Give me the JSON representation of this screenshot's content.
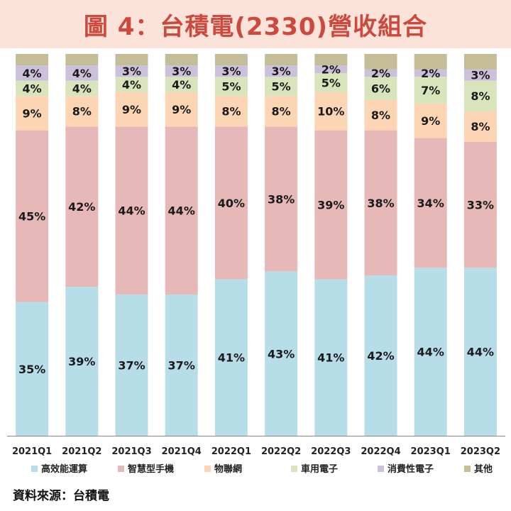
{
  "title": "圖 4：台積電(2330)營收組合",
  "source": "資料來源：台積電",
  "chart_data": {
    "type": "bar",
    "stacked": true,
    "percent": true,
    "categories": [
      "2021Q1",
      "2021Q2",
      "2021Q3",
      "2021Q4",
      "2022Q1",
      "2022Q2",
      "2022Q3",
      "2022Q4",
      "2023Q1",
      "2023Q2"
    ],
    "series": [
      {
        "name": "高效能運算",
        "color": "#b7dde8",
        "values": [
          35,
          39,
          37,
          37,
          41,
          43,
          41,
          42,
          44,
          44
        ]
      },
      {
        "name": "智慧型手機",
        "color": "#e6b8b7",
        "values": [
          45,
          42,
          44,
          44,
          40,
          38,
          39,
          38,
          34,
          33
        ]
      },
      {
        "name": "物聯網",
        "color": "#fcd5b4",
        "values": [
          9,
          8,
          9,
          9,
          8,
          8,
          10,
          8,
          9,
          8
        ]
      },
      {
        "name": "車用電子",
        "color": "#d8e4bc",
        "values": [
          4,
          4,
          4,
          4,
          5,
          5,
          5,
          6,
          7,
          8
        ]
      },
      {
        "name": "消費性電子",
        "color": "#ccc0da",
        "values": [
          4,
          4,
          3,
          3,
          3,
          3,
          2,
          2,
          2,
          3
        ]
      },
      {
        "name": "其他",
        "color": "#c4bd97",
        "values": [
          3,
          3,
          3,
          3,
          3,
          3,
          3,
          4,
          4,
          4
        ]
      }
    ],
    "data_labels": [
      [
        "35%",
        "39%",
        "37%",
        "37%",
        "41%",
        "43%",
        "41%",
        "42%",
        "44%",
        "44%"
      ],
      [
        "45%",
        "42%",
        "44%",
        "44%",
        "40%",
        "38%",
        "39%",
        "38%",
        "34%",
        "33%"
      ],
      [
        "9%",
        "8%",
        "9%",
        "9%",
        "8%",
        "8%",
        "10%",
        "8%",
        "9%",
        "8%"
      ],
      [
        "4%",
        "4%",
        "4%",
        "4%",
        "5%",
        "5%",
        "5%",
        "6%",
        "7%",
        "8%"
      ],
      [
        "4%",
        "4%",
        "3%",
        "3%",
        "3%",
        "3%",
        "2%",
        "2%",
        "2%",
        "3%"
      ],
      [
        "",
        "",
        "",
        "",
        "",
        "",
        "",
        "",
        "",
        ""
      ]
    ],
    "ylim": [
      0,
      100
    ],
    "grid": false,
    "legend_position": "bottom"
  }
}
